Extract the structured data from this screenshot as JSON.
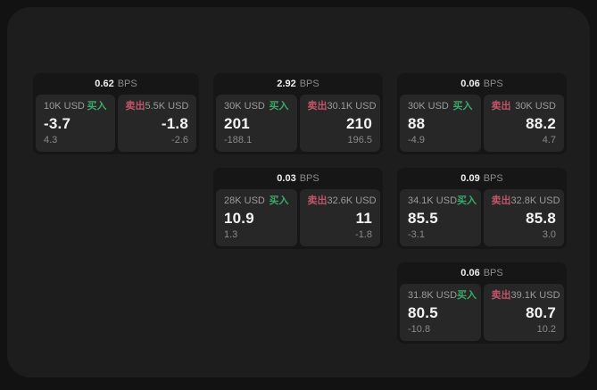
{
  "page": {
    "bps_unit": "BPS",
    "buy_label": "买入",
    "sell_label": "卖出"
  },
  "colors": {
    "backdrop": "#121212",
    "panel_bg": "#1d1d1d",
    "card_bg": "#161616",
    "pane_bg": "#272727",
    "buy_green": "#3aa968",
    "sell_red": "#c0556a",
    "value_white": "#f4f4f4",
    "label_gray": "#9b9b9b"
  },
  "cards": [
    {
      "bps": "0.62",
      "buy": {
        "amount": "10K USD",
        "price": "-3.7",
        "change": "4.3"
      },
      "sell": {
        "amount": "5.5K USD",
        "price": "-1.8",
        "change": "-2.6"
      }
    },
    {
      "bps": "2.92",
      "buy": {
        "amount": "30K USD",
        "price": "201",
        "change": "-188.1"
      },
      "sell": {
        "amount": "30.1K USD",
        "price": "210",
        "change": "196.5"
      }
    },
    {
      "bps": "0.06",
      "buy": {
        "amount": "30K USD",
        "price": "88",
        "change": "-4.9"
      },
      "sell": {
        "amount": "30K USD",
        "price": "88.2",
        "change": "4.7"
      }
    },
    {
      "bps": "0.03",
      "buy": {
        "amount": "28K USD",
        "price": "10.9",
        "change": "1.3"
      },
      "sell": {
        "amount": "32.6K USD",
        "price": "11",
        "change": "-1.8"
      }
    },
    {
      "bps": "0.09",
      "buy": {
        "amount": "34.1K USD",
        "price": "85.5",
        "change": "-3.1"
      },
      "sell": {
        "amount": "32.8K USD",
        "price": "85.8",
        "change": "3.0"
      }
    },
    {
      "bps": "0.06",
      "buy": {
        "amount": "31.8K USD",
        "price": "80.5",
        "change": "-10.8"
      },
      "sell": {
        "amount": "39.1K USD",
        "price": "80.7",
        "change": "10.2"
      }
    }
  ]
}
